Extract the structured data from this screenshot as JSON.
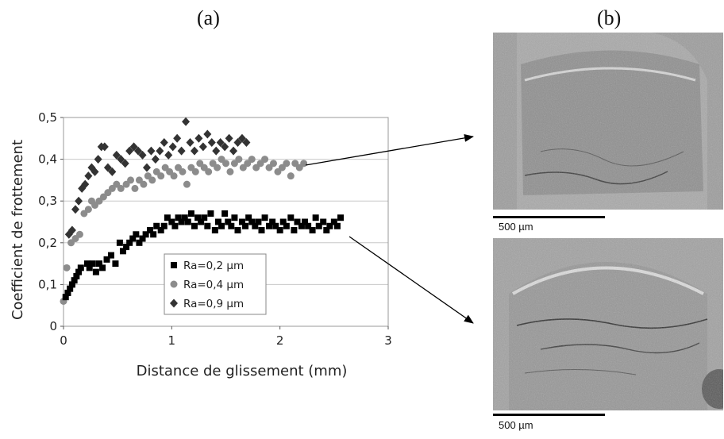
{
  "panels": {
    "left_label": "(a)",
    "right_label": "(b)"
  },
  "scale_label": "500 µm",
  "chart_data": {
    "type": "scatter",
    "xlabel": "Distance de glissement (mm)",
    "ylabel": "Coefficient de frottement",
    "xlim": [
      0,
      3
    ],
    "ylim": [
      0,
      0.5
    ],
    "xticks": [
      "0",
      "1",
      "2",
      "3"
    ],
    "yticks": [
      "0",
      "0,1",
      "0,2",
      "0,3",
      "0,4",
      "0,5"
    ],
    "grid": "horizontal",
    "legend_position": "bottom-center",
    "series": [
      {
        "name": "Ra=0,2 µm",
        "marker": "square",
        "color": "#000000",
        "x": [
          0.02,
          0.04,
          0.06,
          0.08,
          0.1,
          0.12,
          0.14,
          0.16,
          0.22,
          0.24,
          0.27,
          0.3,
          0.33,
          0.36,
          0.4,
          0.44,
          0.48,
          0.52,
          0.55,
          0.58,
          0.61,
          0.64,
          0.67,
          0.7,
          0.73,
          0.76,
          0.8,
          0.83,
          0.86,
          0.9,
          0.93,
          0.96,
          1.0,
          1.03,
          1.06,
          1.09,
          1.12,
          1.15,
          1.18,
          1.21,
          1.24,
          1.27,
          1.3,
          1.33,
          1.36,
          1.4,
          1.43,
          1.46,
          1.49,
          1.52,
          1.55,
          1.58,
          1.61,
          1.65,
          1.68,
          1.71,
          1.74,
          1.77,
          1.8,
          1.83,
          1.86,
          1.9,
          1.93,
          1.96,
          2.0,
          2.03,
          2.06,
          2.1,
          2.13,
          2.16,
          2.2,
          2.23,
          2.26,
          2.3,
          2.33,
          2.36,
          2.4,
          2.43,
          2.46,
          2.5,
          2.53,
          2.56
        ],
        "y": [
          0.07,
          0.08,
          0.09,
          0.1,
          0.11,
          0.12,
          0.13,
          0.14,
          0.15,
          0.14,
          0.15,
          0.13,
          0.15,
          0.14,
          0.16,
          0.17,
          0.15,
          0.2,
          0.18,
          0.19,
          0.2,
          0.21,
          0.22,
          0.2,
          0.21,
          0.22,
          0.23,
          0.22,
          0.24,
          0.23,
          0.24,
          0.26,
          0.25,
          0.24,
          0.26,
          0.25,
          0.26,
          0.25,
          0.27,
          0.24,
          0.26,
          0.25,
          0.26,
          0.24,
          0.27,
          0.23,
          0.25,
          0.24,
          0.27,
          0.25,
          0.24,
          0.26,
          0.23,
          0.25,
          0.24,
          0.26,
          0.25,
          0.24,
          0.25,
          0.23,
          0.26,
          0.24,
          0.25,
          0.24,
          0.23,
          0.25,
          0.24,
          0.26,
          0.23,
          0.25,
          0.24,
          0.25,
          0.24,
          0.23,
          0.26,
          0.24,
          0.25,
          0.23,
          0.24,
          0.25,
          0.24,
          0.26
        ]
      },
      {
        "name": "Ra=0,4 µm",
        "marker": "circle",
        "color": "#8c8c8c",
        "x": [
          0.0,
          0.03,
          0.07,
          0.11,
          0.15,
          0.19,
          0.23,
          0.26,
          0.29,
          0.33,
          0.37,
          0.41,
          0.45,
          0.49,
          0.53,
          0.58,
          0.62,
          0.66,
          0.7,
          0.74,
          0.78,
          0.82,
          0.86,
          0.9,
          0.94,
          0.98,
          1.02,
          1.06,
          1.1,
          1.14,
          1.18,
          1.22,
          1.26,
          1.3,
          1.34,
          1.38,
          1.42,
          1.46,
          1.5,
          1.54,
          1.58,
          1.62,
          1.66,
          1.7,
          1.74,
          1.78,
          1.82,
          1.86,
          1.9,
          1.94,
          1.98,
          2.02,
          2.06,
          2.1,
          2.14,
          2.18,
          2.22
        ],
        "y": [
          0.06,
          0.14,
          0.2,
          0.21,
          0.22,
          0.27,
          0.28,
          0.3,
          0.29,
          0.3,
          0.31,
          0.32,
          0.33,
          0.34,
          0.33,
          0.34,
          0.35,
          0.33,
          0.35,
          0.34,
          0.36,
          0.35,
          0.37,
          0.36,
          0.38,
          0.37,
          0.36,
          0.38,
          0.37,
          0.34,
          0.38,
          0.37,
          0.39,
          0.38,
          0.37,
          0.39,
          0.38,
          0.4,
          0.39,
          0.37,
          0.39,
          0.4,
          0.38,
          0.39,
          0.4,
          0.38,
          0.39,
          0.4,
          0.38,
          0.39,
          0.37,
          0.38,
          0.39,
          0.36,
          0.39,
          0.38,
          0.39
        ]
      },
      {
        "name": "Ra=0,9 µm",
        "marker": "diamond",
        "color": "#333333",
        "x": [
          0.05,
          0.08,
          0.11,
          0.14,
          0.17,
          0.2,
          0.23,
          0.26,
          0.29,
          0.32,
          0.35,
          0.38,
          0.41,
          0.45,
          0.49,
          0.53,
          0.57,
          0.61,
          0.65,
          0.69,
          0.73,
          0.77,
          0.81,
          0.85,
          0.89,
          0.93,
          0.97,
          1.01,
          1.05,
          1.09,
          1.13,
          1.17,
          1.21,
          1.25,
          1.29,
          1.33,
          1.37,
          1.41,
          1.45,
          1.49,
          1.53,
          1.57,
          1.61,
          1.65,
          1.69
        ],
        "y": [
          0.22,
          0.23,
          0.28,
          0.3,
          0.33,
          0.34,
          0.36,
          0.38,
          0.37,
          0.4,
          0.43,
          0.43,
          0.38,
          0.37,
          0.41,
          0.4,
          0.39,
          0.42,
          0.43,
          0.42,
          0.41,
          0.38,
          0.42,
          0.4,
          0.42,
          0.44,
          0.41,
          0.43,
          0.45,
          0.42,
          0.49,
          0.44,
          0.42,
          0.45,
          0.43,
          0.46,
          0.44,
          0.42,
          0.44,
          0.43,
          0.45,
          0.42,
          0.44,
          0.45,
          0.44
        ]
      }
    ]
  }
}
